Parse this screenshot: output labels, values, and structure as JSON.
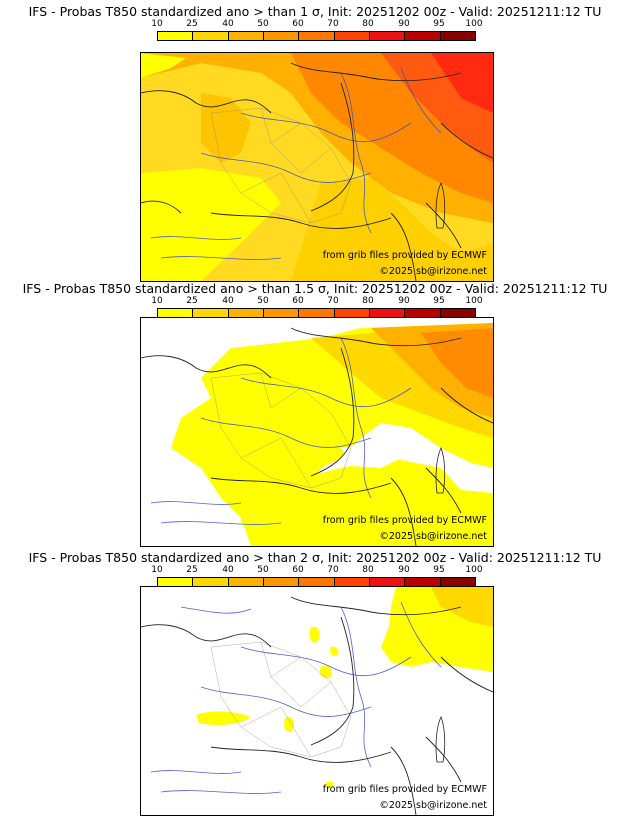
{
  "colorbar": {
    "ticks": [
      "10",
      "25",
      "40",
      "50",
      "60",
      "70",
      "80",
      "90",
      "95",
      "100"
    ],
    "colors": [
      "#ffff00",
      "#ffd700",
      "#ffb300",
      "#ff9500",
      "#ff7700",
      "#ff4400",
      "#ee1111",
      "#bb0000",
      "#880000"
    ]
  },
  "panels": [
    {
      "title": "IFS - Probas T850  standardized ano > than 1 σ, Init: 20251202 00z - Valid: 20251211:12 TU",
      "credit_source": "from grib files provided by ECMWF",
      "credit_copyright": "©2025 sb@irizone.net"
    },
    {
      "title": "IFS - Probas T850  standardized ano > than 1.5 σ, Init: 20251202 00z - Valid: 20251211:12 TU",
      "credit_source": "from grib files provided by ECMWF",
      "credit_copyright": "©2025 sb@irizone.net"
    },
    {
      "title": "IFS - Probas T850  standardized ano > than 2 σ, Init: 20251202 00z - Valid: 20251211:12 TU",
      "credit_source": "from grib files provided by ECMWF",
      "credit_copyright": "©2025 sb@irizone.net"
    }
  ]
}
